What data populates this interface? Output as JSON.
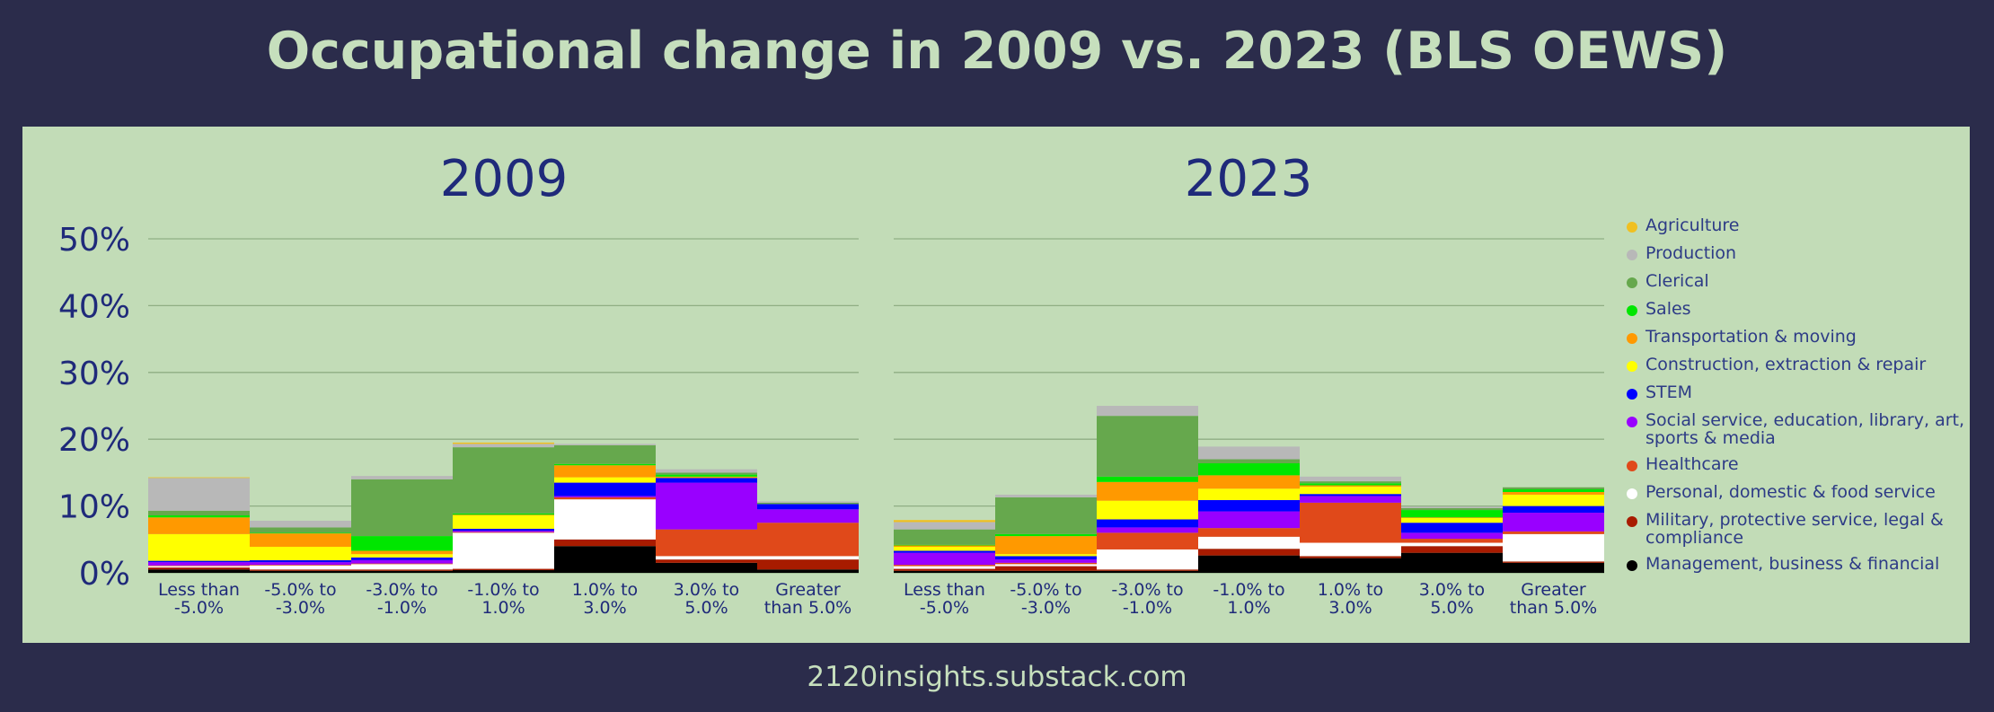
{
  "title": "Occupational change in 2009 vs. 2023 (BLS OEWS)",
  "footer": "2120insights.substack.com",
  "chart_data": [
    {
      "type": "bar",
      "stacked": true,
      "title": "2009",
      "ylim": [
        0,
        50
      ],
      "yticks": [
        "0%",
        "10%",
        "20%",
        "30%",
        "40%",
        "50%"
      ],
      "grid": true,
      "categories": [
        "Less than -5.0%",
        "-5.0% to -3.0%",
        "-3.0% to -1.0%",
        "-1.0% to 1.0%",
        "1.0% to 3.0%",
        "3.0% to 5.0%",
        "Greater than 5.0%"
      ],
      "series": [
        {
          "name": "Management, business & financial",
          "values": [
            0.5,
            0.3,
            0.3,
            0.4,
            4.0,
            1.5,
            0.5
          ]
        },
        {
          "name": "Military, protective service, legal & compliance",
          "values": [
            0.3,
            0.2,
            0.2,
            0.2,
            1.0,
            0.5,
            1.5
          ]
        },
        {
          "name": "Personal, domestic & food service",
          "values": [
            0.2,
            0.6,
            0.8,
            5.4,
            6.0,
            0.5,
            0.5
          ]
        },
        {
          "name": "Healthcare",
          "values": [
            0.1,
            0.1,
            0.1,
            0.1,
            0.3,
            4.0,
            5.0
          ]
        },
        {
          "name": "Social service, education, library, art, sports & media",
          "values": [
            0.5,
            0.4,
            0.5,
            0.2,
            0.2,
            7.0,
            2.0
          ]
        },
        {
          "name": "STEM",
          "values": [
            0.2,
            0.3,
            0.4,
            0.3,
            2.0,
            0.7,
            0.8
          ]
        },
        {
          "name": "Construction, extraction & repair",
          "values": [
            4.0,
            2.0,
            0.5,
            2.0,
            0.8,
            0.0,
            0.0
          ]
        },
        {
          "name": "Transportation & moving",
          "values": [
            2.5,
            2.0,
            0.5,
            0.1,
            1.8,
            0.2,
            0.0
          ]
        },
        {
          "name": "Sales",
          "values": [
            0.3,
            0.1,
            2.2,
            0.2,
            0.2,
            0.3,
            0.0
          ]
        },
        {
          "name": "Clerical",
          "values": [
            0.7,
            0.8,
            8.5,
            9.9,
            2.8,
            0.3,
            0.2
          ]
        },
        {
          "name": "Production",
          "values": [
            4.9,
            1.0,
            0.5,
            0.5,
            0.2,
            0.5,
            0.2
          ]
        },
        {
          "name": "Agriculture",
          "values": [
            0.1,
            0.0,
            0.0,
            0.2,
            0.0,
            0.0,
            0.0
          ]
        }
      ]
    },
    {
      "type": "bar",
      "stacked": true,
      "title": "2023",
      "ylim": [
        0,
        50
      ],
      "grid": true,
      "categories": [
        "Less than -5.0%",
        "-5.0% to -3.0%",
        "-3.0% to -1.0%",
        "-1.0% to 1.0%",
        "1.0% to 3.0%",
        "3.0% to 5.0%",
        "Greater than 5.0%"
      ],
      "series": [
        {
          "name": "Management, business & financial",
          "values": [
            0.3,
            0.3,
            0.3,
            2.6,
            2.2,
            3.0,
            1.5
          ]
        },
        {
          "name": "Military, protective service, legal & compliance",
          "values": [
            0.3,
            0.7,
            0.2,
            1.0,
            0.3,
            1.0,
            0.2
          ]
        },
        {
          "name": "Personal, domestic & food service",
          "values": [
            0.4,
            0.3,
            3.0,
            1.8,
            2.0,
            0.5,
            4.1
          ]
        },
        {
          "name": "Healthcare",
          "values": [
            0.2,
            0.2,
            2.5,
            1.3,
            6.0,
            0.6,
            0.4
          ]
        },
        {
          "name": "Social service, education, library, art, sports & media",
          "values": [
            1.8,
            0.5,
            0.8,
            2.5,
            1.0,
            0.9,
            2.8
          ]
        },
        {
          "name": "STEM",
          "values": [
            0.3,
            0.5,
            1.2,
            1.7,
            0.3,
            1.5,
            1.0
          ]
        },
        {
          "name": "Construction, extraction & repair",
          "values": [
            0.6,
            0.3,
            2.8,
            1.7,
            1.1,
            0.7,
            1.7
          ]
        },
        {
          "name": "Transportation & moving",
          "values": [
            0.2,
            2.7,
            2.8,
            2.0,
            0.2,
            0.1,
            0.4
          ]
        },
        {
          "name": "Sales",
          "values": [
            0.1,
            0.3,
            0.8,
            1.8,
            0.3,
            1.1,
            0.4
          ]
        },
        {
          "name": "Clerical",
          "values": [
            2.3,
            5.5,
            9.1,
            0.6,
            0.3,
            0.3,
            0.3
          ]
        },
        {
          "name": "Production",
          "values": [
            1.1,
            0.4,
            1.5,
            1.9,
            0.7,
            0.2,
            0.0
          ]
        },
        {
          "name": "Agriculture",
          "values": [
            0.3,
            0.0,
            0.0,
            0.0,
            0.0,
            0.0,
            0.0
          ]
        }
      ]
    }
  ],
  "legend": [
    {
      "label": "Agriculture",
      "color": "#f0c020"
    },
    {
      "label": "Production",
      "color": "#b8b8b8"
    },
    {
      "label": "Clerical",
      "color": "#66a84d"
    },
    {
      "label": "Sales",
      "color": "#00e600"
    },
    {
      "label": "Transportation & moving",
      "color": "#ff9900"
    },
    {
      "label": "Construction, extraction & repair",
      "color": "#ffff00"
    },
    {
      "label": "STEM",
      "color": "#0000ff"
    },
    {
      "label": "Social service, education, library, art, sports & media",
      "color": "#9900ff"
    },
    {
      "label": "Healthcare",
      "color": "#e0491a"
    },
    {
      "label": "Personal, domestic & food service",
      "color": "#ffffff"
    },
    {
      "label": "Military, protective service, legal & compliance",
      "color": "#a81b00"
    },
    {
      "label": "Management, business & financial",
      "color": "#000000"
    }
  ]
}
